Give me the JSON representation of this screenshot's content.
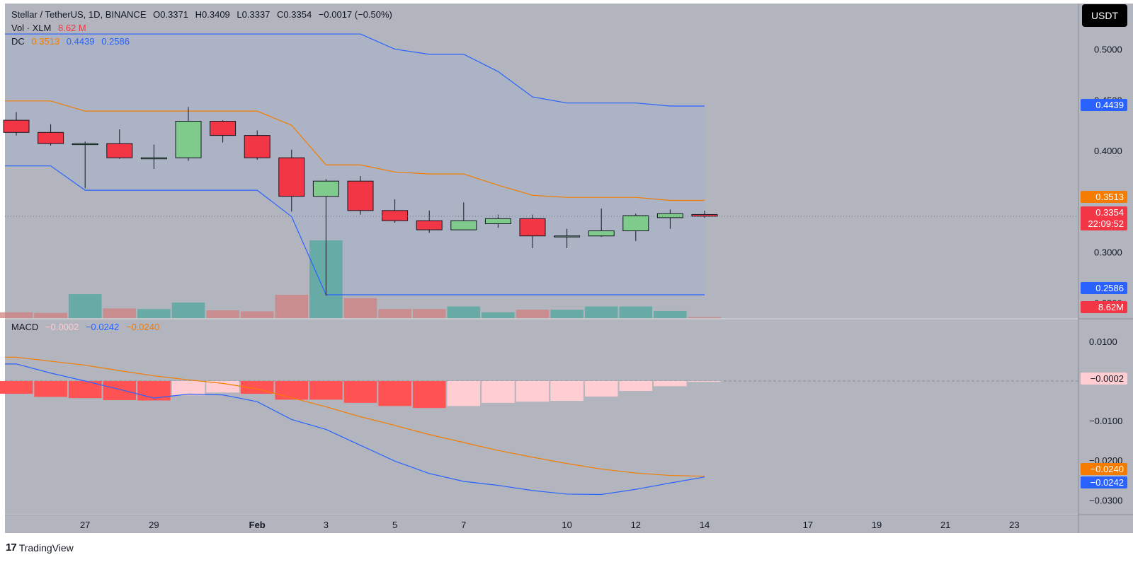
{
  "header": {
    "symbol": "Stellar / TetherUS, 1D, BINANCE",
    "o": "O0.3371",
    "h": "H0.3409",
    "l": "L0.3337",
    "c": "C0.3354",
    "change": "−0.0017 (−0.50%)"
  },
  "vol_legend": {
    "label": "Vol · XLM",
    "value": "8.62 M"
  },
  "dc_legend": {
    "label": "DC",
    "mid": "0.3513",
    "upper": "0.4439",
    "lower": "0.2586"
  },
  "macd_legend": {
    "label": "MACD",
    "hist": "−0.0002",
    "macd": "−0.0242",
    "signal": "−0.0240"
  },
  "currency_button": "USDT",
  "brand": "TradingView",
  "colors": {
    "up": "#7ecb8b",
    "down": "#f23645",
    "dc_upper": "#2962ff",
    "dc_mid": "#f57c00",
    "macd_line": "#2962ff",
    "signal_line": "#f57c00",
    "hist_neg_strong": "#ff5252",
    "hist_neg_weak": "#ffcdd2",
    "panel_bg": "#b2b5be"
  },
  "price_axis_labels": [
    "0.5000",
    "0.4500",
    "0.4000",
    "0.3000",
    "0.2500"
  ],
  "macd_axis_labels": [
    "0.0100",
    "−0.0100",
    "−0.0200",
    "−0.0300"
  ],
  "price_badges": {
    "upper": "0.4439",
    "mid": "0.3513",
    "last": "0.3354",
    "countdown": "22:09:52",
    "lower": "0.2586",
    "vol": "8.62M"
  },
  "macd_badges": {
    "hist": "−0.0002",
    "signal": "−0.0240",
    "macd": "−0.0242"
  },
  "chart_data": {
    "type": "candlestick",
    "x_ticks": [
      "27",
      "29",
      "Feb",
      "3",
      "5",
      "7",
      "10",
      "12",
      "14",
      "17",
      "19",
      "21",
      "23"
    ],
    "candles": [
      {
        "o": 0.43,
        "h": 0.438,
        "l": 0.415,
        "c": 0.418
      },
      {
        "o": 0.418,
        "h": 0.426,
        "l": 0.405,
        "c": 0.407
      },
      {
        "o": 0.406,
        "h": 0.409,
        "l": 0.363,
        "c": 0.407
      },
      {
        "o": 0.407,
        "h": 0.421,
        "l": 0.392,
        "c": 0.393
      },
      {
        "o": 0.393,
        "h": 0.406,
        "l": 0.382,
        "c": 0.393
      },
      {
        "o": 0.393,
        "h": 0.443,
        "l": 0.39,
        "c": 0.429
      },
      {
        "o": 0.429,
        "h": 0.43,
        "l": 0.408,
        "c": 0.415
      },
      {
        "o": 0.415,
        "h": 0.42,
        "l": 0.391,
        "c": 0.393
      },
      {
        "o": 0.393,
        "h": 0.401,
        "l": 0.34,
        "c": 0.355
      },
      {
        "o": 0.355,
        "h": 0.372,
        "l": 0.257,
        "c": 0.37
      },
      {
        "o": 0.37,
        "h": 0.375,
        "l": 0.337,
        "c": 0.341
      },
      {
        "o": 0.341,
        "h": 0.352,
        "l": 0.329,
        "c": 0.331
      },
      {
        "o": 0.331,
        "h": 0.341,
        "l": 0.319,
        "c": 0.322
      },
      {
        "o": 0.322,
        "h": 0.349,
        "l": 0.322,
        "c": 0.331
      },
      {
        "o": 0.328,
        "h": 0.337,
        "l": 0.324,
        "c": 0.333
      },
      {
        "o": 0.333,
        "h": 0.337,
        "l": 0.304,
        "c": 0.316
      },
      {
        "o": 0.316,
        "h": 0.323,
        "l": 0.304,
        "c": 0.316
      },
      {
        "o": 0.316,
        "h": 0.343,
        "l": 0.315,
        "c": 0.321
      },
      {
        "o": 0.321,
        "h": 0.338,
        "l": 0.311,
        "c": 0.336
      },
      {
        "o": 0.334,
        "h": 0.342,
        "l": 0.323,
        "c": 0.338
      },
      {
        "o": 0.3371,
        "h": 0.3409,
        "l": 0.3337,
        "c": 0.3354
      }
    ],
    "volume": [
      0.45,
      0.4,
      1.85,
      0.75,
      0.7,
      1.2,
      0.6,
      0.52,
      1.8,
      6.0,
      1.55,
      0.7,
      0.7,
      0.9,
      0.45,
      0.65,
      0.65,
      0.9,
      0.9,
      0.55,
      0.08
    ],
    "donchian": {
      "upper": [
        0.515,
        0.515,
        0.515,
        0.515,
        0.515,
        0.515,
        0.515,
        0.515,
        0.515,
        0.515,
        0.515,
        0.5,
        0.495,
        0.495,
        0.478,
        0.453,
        0.447,
        0.447,
        0.447,
        0.444,
        0.444
      ],
      "middle": [
        0.449,
        0.449,
        0.439,
        0.439,
        0.439,
        0.439,
        0.439,
        0.439,
        0.425,
        0.386,
        0.386,
        0.379,
        0.377,
        0.377,
        0.366,
        0.356,
        0.354,
        0.354,
        0.354,
        0.351,
        0.351
      ],
      "lower": [
        0.385,
        0.385,
        0.361,
        0.361,
        0.361,
        0.361,
        0.361,
        0.361,
        0.335,
        0.258,
        0.258,
        0.258,
        0.258,
        0.258,
        0.258,
        0.258,
        0.258,
        0.258,
        0.258,
        0.258,
        0.258
      ]
    },
    "macd": {
      "histogram": [
        -0.0032,
        -0.004,
        -0.0043,
        -0.0048,
        -0.0049,
        -0.0036,
        -0.0029,
        -0.0032,
        -0.0047,
        -0.0047,
        -0.0055,
        -0.0063,
        -0.0068,
        -0.0063,
        -0.0055,
        -0.0052,
        -0.005,
        -0.0039,
        -0.0025,
        -0.0013,
        -0.0002
      ],
      "macd_line": [
        0.0043,
        0.002,
        0.0,
        -0.0021,
        -0.0043,
        -0.0033,
        -0.0035,
        -0.0052,
        -0.0097,
        -0.0122,
        -0.0162,
        -0.0202,
        -0.0233,
        -0.0253,
        -0.0263,
        -0.0276,
        -0.0285,
        -0.0286,
        -0.0273,
        -0.0257,
        -0.0242
      ],
      "signal_line": [
        0.006,
        0.005,
        0.004,
        0.0026,
        0.0013,
        0.0003,
        -0.0006,
        -0.002,
        -0.0042,
        -0.0065,
        -0.009,
        -0.0112,
        -0.0135,
        -0.0155,
        -0.0175,
        -0.0192,
        -0.0208,
        -0.0222,
        -0.0232,
        -0.0238,
        -0.024
      ]
    },
    "price_ylim": [
      0.235,
      0.545
    ],
    "macd_ylim": [
      -0.0335,
      0.0155
    ],
    "last_price": 0.3354
  }
}
